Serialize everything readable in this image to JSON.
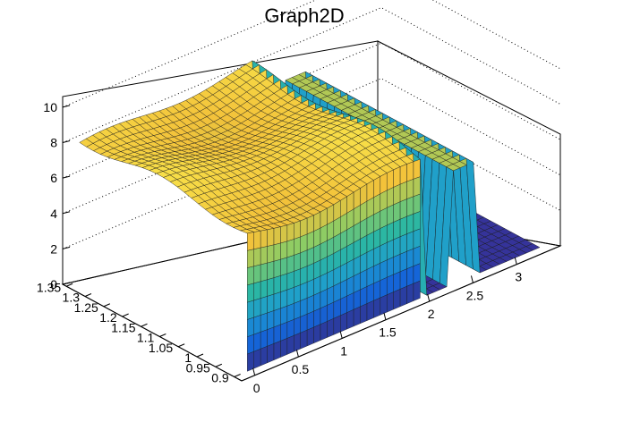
{
  "chart_data": {
    "type": "surface3d",
    "title": "Graph2D",
    "xlabel": "",
    "ylabel": "",
    "zlabel": "",
    "xlim": [
      -0.15,
      3.5
    ],
    "ylim": [
      0.88,
      1.36
    ],
    "zlim": [
      0,
      10.5
    ],
    "x_ticks": [
      "0",
      "0.5",
      "1",
      "1.5",
      "2",
      "2.5",
      "3"
    ],
    "y_ticks": [
      "0.9",
      "0.95",
      "1",
      "1.05",
      "1.1",
      "1.15",
      "1.2",
      "1.25",
      "1.3",
      "1.35"
    ],
    "z_ticks": [
      "0",
      "2",
      "4",
      "6",
      "8",
      "10"
    ],
    "palette": [
      "#352a87",
      "#1565d8",
      "#1d9bd1",
      "#2bb7a3",
      "#8ccc65",
      "#f3c23a",
      "#f9e94d"
    ],
    "grid": true,
    "surface_levels": {
      "plateau_z": [
        7.2,
        8.4
      ],
      "x_drop": 2.0,
      "narrow_band_x": [
        2.3,
        2.6
      ],
      "floor_z": 0
    }
  }
}
